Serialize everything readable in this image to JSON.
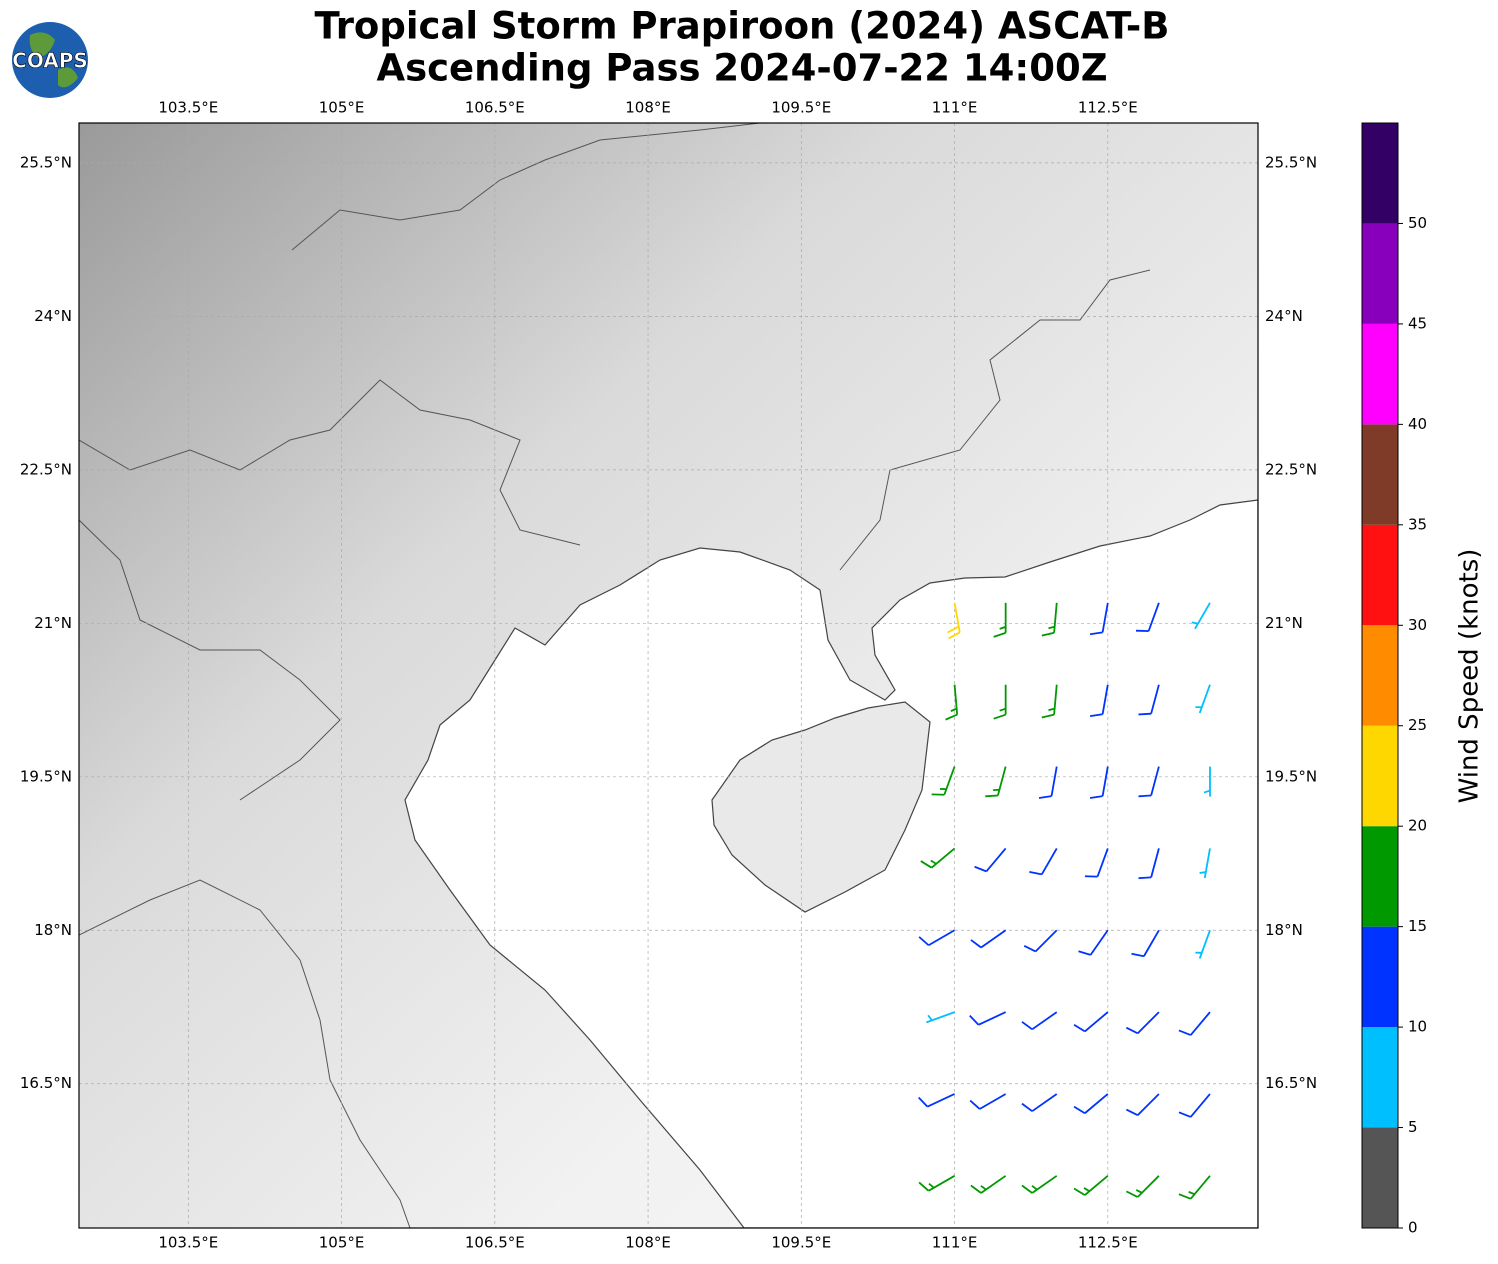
{
  "logo": "COAPS",
  "chart_data": {
    "type": "wind_barbs",
    "title": "Tropical Storm Prapiroon (2024) ASCAT-B",
    "subtitle": "Ascending Pass 2024-07-22 14:00Z",
    "xlim": [
      102.43,
      113.97
    ],
    "ylim": [
      15.09,
      25.89
    ],
    "xticks": [
      {
        "value": 103.5,
        "label": "103.5°E"
      },
      {
        "value": 105,
        "label": "105°E"
      },
      {
        "value": 106.5,
        "label": "106.5°E"
      },
      {
        "value": 108,
        "label": "108°E"
      },
      {
        "value": 109.5,
        "label": "109.5°E"
      },
      {
        "value": 111,
        "label": "111°E"
      },
      {
        "value": 112.5,
        "label": "112.5°E"
      }
    ],
    "yticks": [
      {
        "value": 16.5,
        "label": "16.5°N"
      },
      {
        "value": 18,
        "label": "18°N"
      },
      {
        "value": 19.5,
        "label": "19.5°N"
      },
      {
        "value": 21,
        "label": "21°N"
      },
      {
        "value": 22.5,
        "label": "22.5°N"
      },
      {
        "value": 24,
        "label": "24°N"
      },
      {
        "value": 25.5,
        "label": "25.5°N"
      }
    ],
    "grid": true,
    "barbs": {
      "lon": [
        111.0,
        111.5,
        112.0,
        112.5,
        113.0,
        113.5,
        111.0,
        111.5,
        112.0,
        112.5,
        113.0,
        113.5,
        111.0,
        111.5,
        112.0,
        112.5,
        113.0,
        113.5,
        111.0,
        111.5,
        112.0,
        112.5,
        113.0,
        113.5,
        111.0,
        111.5,
        112.0,
        112.5,
        113.0,
        113.5,
        111.0,
        111.5,
        112.0,
        112.5,
        113.0,
        113.5,
        111.0,
        111.5,
        112.0,
        112.5,
        113.0,
        113.5,
        111.0,
        111.5,
        112.0,
        112.5,
        113.0,
        113.5
      ],
      "lat": [
        21.2,
        21.2,
        21.2,
        21.2,
        21.2,
        21.2,
        20.4,
        20.4,
        20.4,
        20.4,
        20.4,
        20.4,
        19.6,
        19.6,
        19.6,
        19.6,
        19.6,
        19.6,
        18.8,
        18.8,
        18.8,
        18.8,
        18.8,
        18.8,
        18.0,
        18.0,
        18.0,
        18.0,
        18.0,
        18.0,
        17.2,
        17.2,
        17.2,
        17.2,
        17.2,
        17.2,
        16.4,
        16.4,
        16.4,
        16.4,
        16.4,
        16.4,
        15.6,
        15.6,
        15.6,
        15.6,
        15.6,
        15.6
      ],
      "speed": [
        22,
        18,
        17,
        13,
        12,
        8,
        17,
        18,
        16,
        13,
        12,
        8,
        16,
        17,
        14,
        12,
        11,
        7,
        15,
        13,
        12,
        12,
        11,
        8,
        12,
        11,
        12,
        12,
        11,
        8,
        8,
        12,
        13,
        13,
        12,
        12,
        12,
        13,
        13,
        14,
        14,
        13,
        16,
        17,
        17,
        18,
        18,
        17
      ],
      "direction": [
        170,
        180,
        185,
        190,
        200,
        210,
        175,
        180,
        185,
        190,
        195,
        200,
        200,
        195,
        190,
        190,
        195,
        180,
        230,
        220,
        210,
        200,
        195,
        190,
        240,
        235,
        225,
        215,
        210,
        200,
        250,
        245,
        235,
        230,
        225,
        220,
        245,
        240,
        235,
        230,
        225,
        220,
        240,
        235,
        235,
        230,
        225,
        220
      ]
    },
    "colorbar": {
      "label": "Wind Speed (knots)",
      "bounds": [
        0,
        5,
        10,
        15,
        20,
        25,
        30,
        35,
        40,
        45,
        50,
        55
      ],
      "colors": [
        "#555555",
        "#00bfff",
        "#0033ff",
        "#009900",
        "#ffd700",
        "#ff8c00",
        "#ff1111",
        "#7f3a28",
        "#ff00ff",
        "#8800bb",
        "#330066"
      ],
      "ticks": [
        0,
        5,
        10,
        15,
        20,
        25,
        30,
        35,
        40,
        45,
        50
      ]
    }
  }
}
